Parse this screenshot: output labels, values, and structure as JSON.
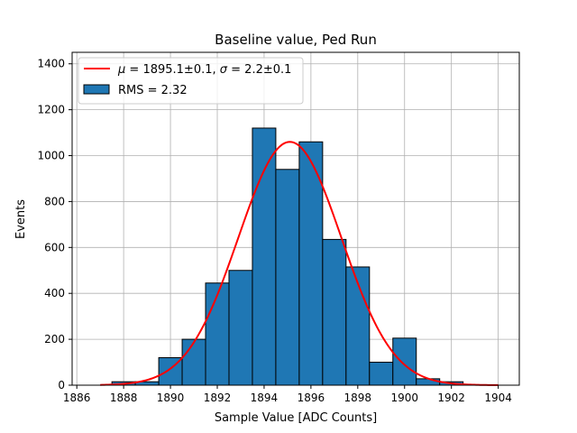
{
  "chart_data": {
    "type": "bar",
    "title": "Baseline value, Ped Run",
    "xlabel": "Sample Value [ADC Counts]",
    "ylabel": "Events",
    "xlim": [
      1885.8,
      1904.9
    ],
    "ylim": [
      0,
      1450
    ],
    "grid": true,
    "legend_position": "top-left",
    "xticks": [
      1886,
      1888,
      1890,
      1892,
      1894,
      1896,
      1898,
      1900,
      1902,
      1904
    ],
    "yticks": [
      0,
      200,
      400,
      600,
      800,
      1000,
      1200,
      1400
    ],
    "histogram": {
      "name": "RMS = 2.32",
      "color": "#1f77b4",
      "edgecolor": "#000000",
      "bin_edges": [
        1887.5,
        1888.5,
        1889.5,
        1890.5,
        1891.5,
        1892.5,
        1893.5,
        1894.5,
        1895.5,
        1896.5,
        1897.5,
        1898.5,
        1899.5,
        1900.5,
        1901.5,
        1902.5
      ],
      "counts": [
        15,
        15,
        120,
        200,
        445,
        500,
        1120,
        940,
        1060,
        635,
        515,
        100,
        205,
        28,
        15
      ]
    },
    "fit": {
      "name_prefix": "μ = 1895.1±0.1, σ = 2.2±0.1",
      "type": "gaussian",
      "mu": 1895.1,
      "sigma": 2.2,
      "amplitude": 1060,
      "x_range": [
        1887,
        1904
      ],
      "color": "#ff0000"
    },
    "legend": {
      "fit_label_mu": "μ",
      "fit_label_eq1": " = 1895.1±0.1, ",
      "fit_label_sigma": "σ",
      "fit_label_eq2": " = 2.2±0.1",
      "hist_label": "RMS = 2.32"
    }
  }
}
